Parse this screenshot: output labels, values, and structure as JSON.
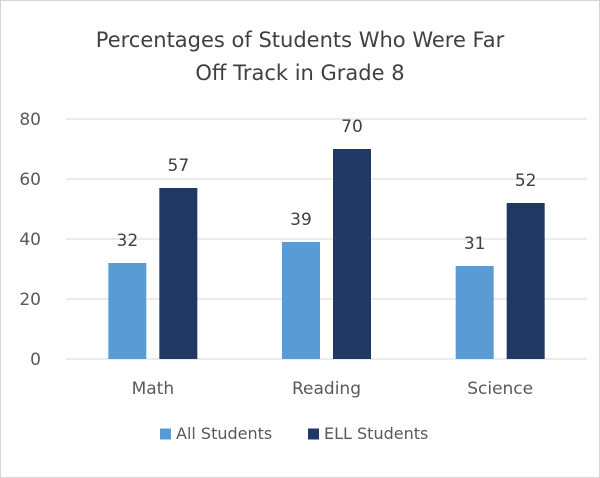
{
  "chart_data": {
    "type": "bar",
    "title_lines": [
      "Percentages of Students Who Were Far",
      "Off Track in Grade 8"
    ],
    "categories": [
      "Math",
      "Reading",
      "Science"
    ],
    "series": [
      {
        "name": "All Students",
        "values": [
          32,
          39,
          31
        ],
        "color": "#5b9bd5"
      },
      {
        "name": "ELL Students",
        "values": [
          57,
          70,
          52
        ],
        "color": "#1f3864"
      }
    ],
    "ylim": [
      0,
      80
    ],
    "yticks": [
      0,
      20,
      40,
      60,
      80
    ],
    "grid": true,
    "grid_color": "#d9d9d9",
    "legend_position": "bottom",
    "xlabel": "",
    "ylabel": ""
  }
}
